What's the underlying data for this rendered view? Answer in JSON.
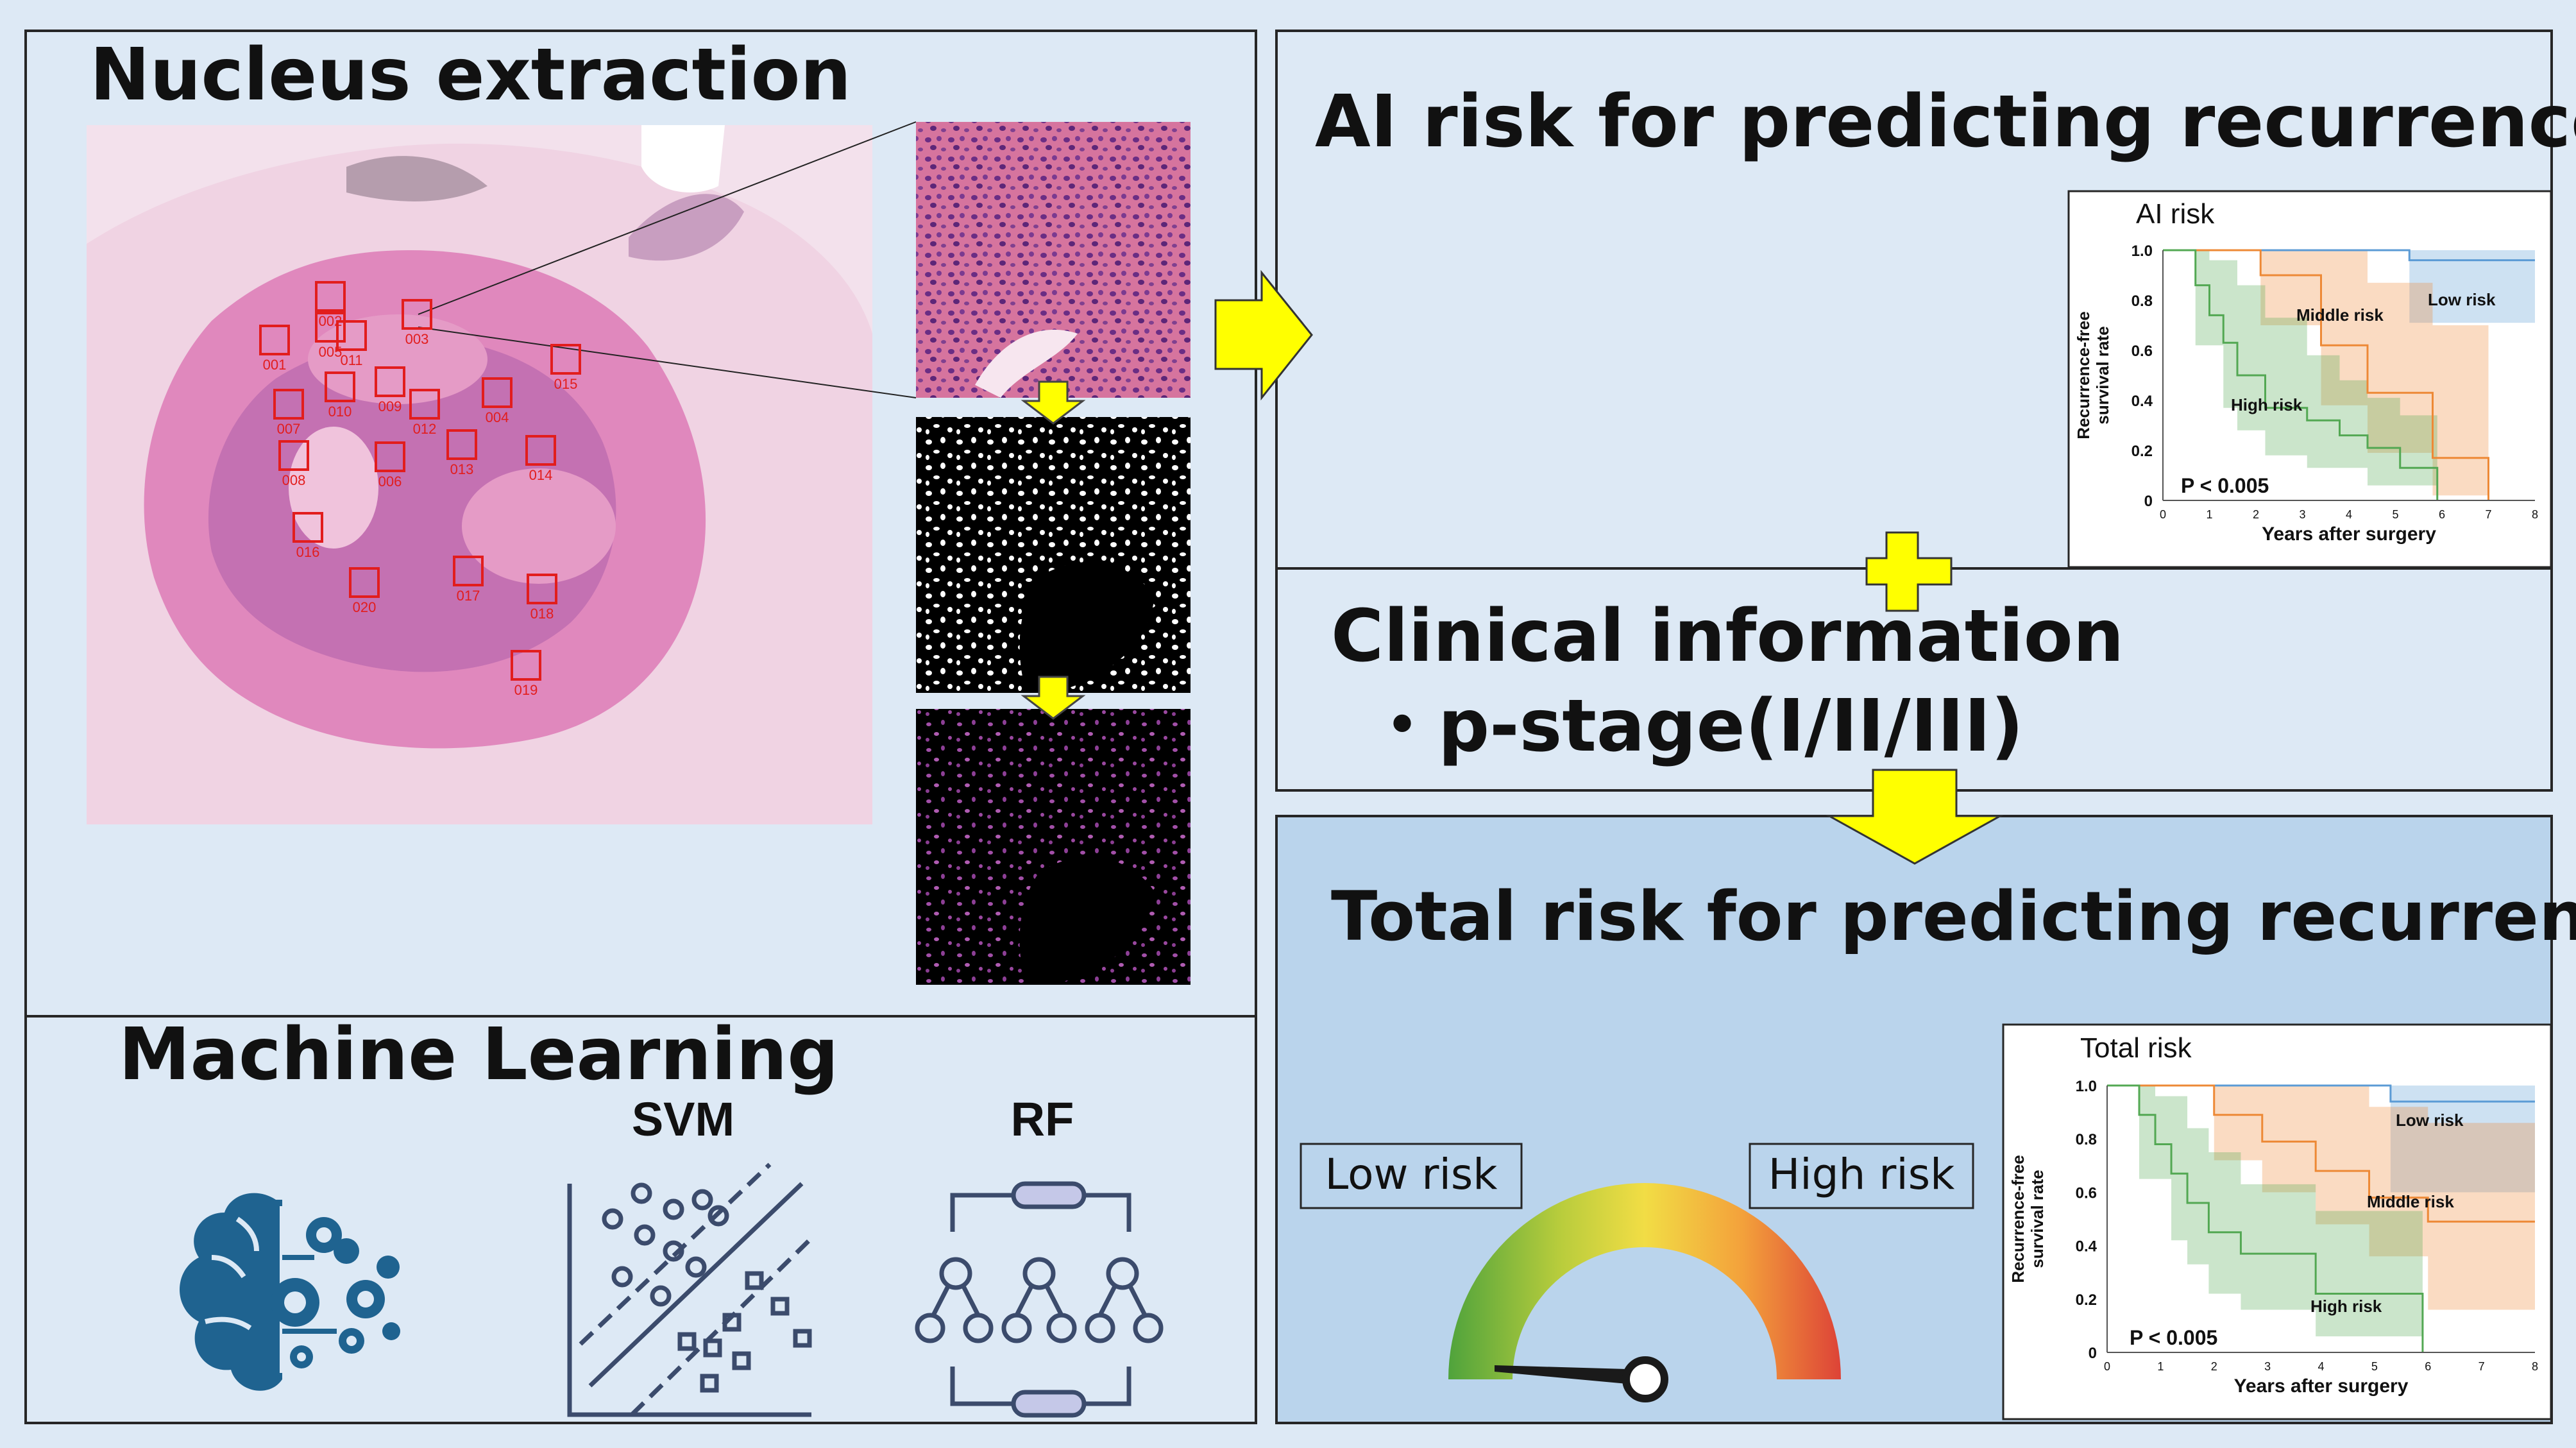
{
  "palette": {
    "panel_bg": "#dde9f5",
    "total_bg": "#bad4ec",
    "arrow": "#ffff00",
    "border": "#262626",
    "tissue": "#e27cbc",
    "low": "#5b9bd5",
    "middle": "#ed8936",
    "high": "#53a853",
    "icon": "#1f6390",
    "ml_line": "#3b4b6c"
  },
  "nucleus": {
    "title": "Nucleus extraction",
    "roi_labels": [
      "001",
      "002",
      "003",
      "004",
      "005",
      "006",
      "007",
      "008",
      "009",
      "010",
      "011",
      "012",
      "013",
      "014",
      "015",
      "016",
      "017",
      "018",
      "019",
      "020"
    ]
  },
  "ml": {
    "title": "Machine Learning",
    "svm_label": "SVM",
    "rf_label": "RF",
    "icons": [
      "brain-gears-icon",
      "svm-scatter-icon",
      "random-forest-icon"
    ]
  },
  "ai": {
    "title": "AI risk for predicting recurrence"
  },
  "clinical": {
    "title": "Clinical information",
    "item": "・p-stage(I/II/III)"
  },
  "total": {
    "title": "Total risk for predicting recurrence",
    "low_label": "Low risk",
    "high_label": "High risk"
  },
  "chart_data": [
    {
      "type": "line",
      "title": "AI risk",
      "xlabel": "Years after surgery",
      "ylabel": "Recurrence-free survival rate",
      "xticks": [
        "0",
        "1",
        "2",
        "3",
        "4",
        "5",
        "6",
        "7",
        "8"
      ],
      "yticks": [
        "0",
        "0.2",
        "0.4",
        "0.6",
        "0.8",
        "1.0"
      ],
      "xlim": [
        0,
        8
      ],
      "ylim": [
        0,
        1
      ],
      "annotation": "P < 0.005",
      "series": [
        {
          "name": "Low risk",
          "points": [
            [
              0,
              1.0
            ],
            [
              5.3,
              1.0
            ],
            [
              5.3,
              0.96
            ],
            [
              8,
              0.96
            ]
          ],
          "ci_lower": [
            [
              0,
              1.0
            ],
            [
              5.3,
              1.0
            ],
            [
              5.3,
              0.71
            ],
            [
              8,
              0.71
            ]
          ],
          "ci_upper": [
            [
              0,
              1.0
            ],
            [
              8,
              1.0
            ]
          ]
        },
        {
          "name": "Middle risk",
          "points": [
            [
              0,
              1.0
            ],
            [
              2.1,
              1.0
            ],
            [
              2.1,
              0.9
            ],
            [
              3.4,
              0.9
            ],
            [
              3.4,
              0.62
            ],
            [
              4.4,
              0.62
            ],
            [
              4.4,
              0.43
            ],
            [
              5.8,
              0.43
            ],
            [
              5.8,
              0.17
            ],
            [
              7,
              0.17
            ],
            [
              7,
              0.0
            ]
          ],
          "ci_lower": [
            [
              0,
              1.0
            ],
            [
              2.1,
              0.7
            ],
            [
              3.4,
              0.38
            ],
            [
              4.4,
              0.19
            ],
            [
              5.8,
              0.02
            ],
            [
              7,
              0.02
            ]
          ],
          "ci_upper": [
            [
              0,
              1.0
            ],
            [
              3.4,
              1.0
            ],
            [
              4.4,
              0.87
            ],
            [
              5.8,
              0.7
            ],
            [
              7,
              0.52
            ],
            [
              7,
              0.52
            ]
          ]
        },
        {
          "name": "High risk",
          "points": [
            [
              0,
              1.0
            ],
            [
              0.7,
              1.0
            ],
            [
              0.7,
              0.86
            ],
            [
              1.0,
              0.86
            ],
            [
              1.0,
              0.74
            ],
            [
              1.3,
              0.74
            ],
            [
              1.3,
              0.63
            ],
            [
              1.6,
              0.63
            ],
            [
              1.6,
              0.5
            ],
            [
              2.2,
              0.5
            ],
            [
              2.2,
              0.37
            ],
            [
              3.1,
              0.37
            ],
            [
              3.1,
              0.32
            ],
            [
              3.8,
              0.32
            ],
            [
              3.8,
              0.26
            ],
            [
              4.4,
              0.26
            ],
            [
              4.4,
              0.21
            ],
            [
              5.1,
              0.21
            ],
            [
              5.1,
              0.13
            ],
            [
              5.9,
              0.13
            ],
            [
              5.9,
              0.0
            ]
          ],
          "ci_lower": [
            [
              0,
              1.0
            ],
            [
              0.7,
              0.62
            ],
            [
              1.3,
              0.37
            ],
            [
              1.6,
              0.28
            ],
            [
              2.2,
              0.18
            ],
            [
              3.1,
              0.13
            ],
            [
              4.4,
              0.06
            ],
            [
              5.9,
              0.0
            ]
          ],
          "ci_upper": [
            [
              0,
              1.0
            ],
            [
              0.7,
              1.0
            ],
            [
              1.0,
              0.96
            ],
            [
              1.6,
              0.86
            ],
            [
              2.2,
              0.73
            ],
            [
              3.1,
              0.58
            ],
            [
              3.8,
              0.48
            ],
            [
              4.4,
              0.41
            ],
            [
              5.1,
              0.34
            ],
            [
              5.9,
              0.29
            ],
            [
              5.9,
              0.29
            ]
          ]
        }
      ]
    },
    {
      "type": "line",
      "title": "Total risk",
      "xlabel": "Years after surgery",
      "ylabel": "Recurrence-free survival rate",
      "xticks": [
        "0",
        "1",
        "2",
        "3",
        "4",
        "5",
        "6",
        "7",
        "8"
      ],
      "yticks": [
        "0",
        "0.2",
        "0.4",
        "0.6",
        "0.8",
        "1.0"
      ],
      "xlim": [
        0,
        8
      ],
      "ylim": [
        0,
        1
      ],
      "annotation": "P < 0.005",
      "series": [
        {
          "name": "Low risk",
          "points": [
            [
              0,
              1.0
            ],
            [
              5.3,
              1.0
            ],
            [
              5.3,
              0.94
            ],
            [
              8,
              0.94
            ]
          ],
          "ci_lower": [
            [
              0,
              1.0
            ],
            [
              5.3,
              1.0
            ],
            [
              5.3,
              0.6
            ],
            [
              8,
              0.6
            ]
          ],
          "ci_upper": [
            [
              0,
              1.0
            ],
            [
              8,
              1.0
            ]
          ]
        },
        {
          "name": "Middle risk",
          "points": [
            [
              0,
              1.0
            ],
            [
              2.0,
              1.0
            ],
            [
              2.0,
              0.89
            ],
            [
              2.9,
              0.89
            ],
            [
              2.9,
              0.79
            ],
            [
              3.9,
              0.79
            ],
            [
              3.9,
              0.68
            ],
            [
              4.9,
              0.68
            ],
            [
              4.9,
              0.58
            ],
            [
              6.0,
              0.58
            ],
            [
              6.0,
              0.49
            ],
            [
              8,
              0.49
            ]
          ],
          "ci_lower": [
            [
              0,
              1.0
            ],
            [
              2.0,
              0.72
            ],
            [
              2.9,
              0.6
            ],
            [
              3.9,
              0.48
            ],
            [
              4.9,
              0.36
            ],
            [
              6.0,
              0.16
            ],
            [
              8,
              0.16
            ]
          ],
          "ci_upper": [
            [
              0,
              1.0
            ],
            [
              3.9,
              1.0
            ],
            [
              4.9,
              0.92
            ],
            [
              6.0,
              0.86
            ],
            [
              8,
              0.82
            ]
          ]
        },
        {
          "name": "High risk",
          "points": [
            [
              0,
              1.0
            ],
            [
              0.6,
              1.0
            ],
            [
              0.6,
              0.89
            ],
            [
              0.9,
              0.89
            ],
            [
              0.9,
              0.78
            ],
            [
              1.2,
              0.78
            ],
            [
              1.2,
              0.67
            ],
            [
              1.5,
              0.67
            ],
            [
              1.5,
              0.56
            ],
            [
              1.9,
              0.56
            ],
            [
              1.9,
              0.45
            ],
            [
              2.5,
              0.45
            ],
            [
              2.5,
              0.37
            ],
            [
              3.9,
              0.37
            ],
            [
              3.9,
              0.22
            ],
            [
              5.9,
              0.22
            ],
            [
              5.9,
              0.0
            ]
          ],
          "ci_lower": [
            [
              0,
              1.0
            ],
            [
              0.6,
              0.65
            ],
            [
              1.2,
              0.42
            ],
            [
              1.5,
              0.33
            ],
            [
              1.9,
              0.22
            ],
            [
              2.5,
              0.16
            ],
            [
              3.9,
              0.06
            ],
            [
              5.9,
              0.0
            ]
          ],
          "ci_upper": [
            [
              0,
              1.0
            ],
            [
              0.6,
              1.0
            ],
            [
              0.9,
              0.96
            ],
            [
              1.5,
              0.84
            ],
            [
              1.9,
              0.75
            ],
            [
              2.5,
              0.63
            ],
            [
              3.9,
              0.53
            ],
            [
              5.9,
              0.4
            ],
            [
              5.9,
              0.4
            ]
          ]
        }
      ]
    }
  ]
}
